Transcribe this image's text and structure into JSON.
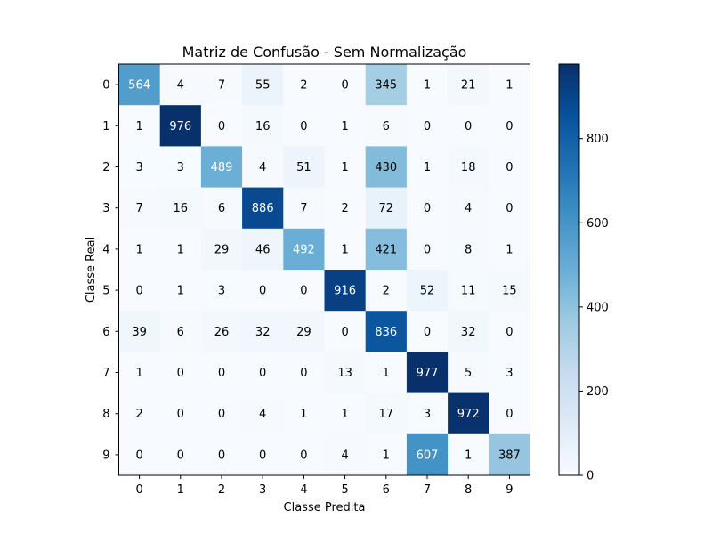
{
  "chart_data": {
    "type": "heatmap",
    "title": "Matriz de Confusão - Sem Normalização",
    "xlabel": "Classe Predita",
    "ylabel": "Classe Real",
    "x_categories": [
      "0",
      "1",
      "2",
      "3",
      "4",
      "5",
      "6",
      "7",
      "8",
      "9"
    ],
    "y_categories": [
      "0",
      "1",
      "2",
      "3",
      "4",
      "5",
      "6",
      "7",
      "8",
      "9"
    ],
    "matrix": [
      [
        564,
        4,
        7,
        55,
        2,
        0,
        345,
        1,
        21,
        1
      ],
      [
        1,
        976,
        0,
        16,
        0,
        1,
        6,
        0,
        0,
        0
      ],
      [
        3,
        3,
        489,
        4,
        51,
        1,
        430,
        1,
        18,
        0
      ],
      [
        7,
        16,
        6,
        886,
        7,
        2,
        72,
        0,
        4,
        0
      ],
      [
        1,
        1,
        29,
        46,
        492,
        1,
        421,
        0,
        8,
        1
      ],
      [
        0,
        1,
        3,
        0,
        0,
        916,
        2,
        52,
        11,
        15
      ],
      [
        39,
        6,
        26,
        32,
        29,
        0,
        836,
        0,
        32,
        0
      ],
      [
        1,
        0,
        0,
        0,
        0,
        13,
        1,
        977,
        5,
        3
      ],
      [
        2,
        0,
        0,
        4,
        1,
        1,
        17,
        3,
        972,
        0
      ],
      [
        0,
        0,
        0,
        0,
        0,
        4,
        1,
        607,
        1,
        387
      ]
    ],
    "colormap": "Blues",
    "color_range": [
      0,
      977
    ],
    "colorbar_ticks": [
      0,
      200,
      400,
      600,
      800
    ],
    "grid": false
  }
}
